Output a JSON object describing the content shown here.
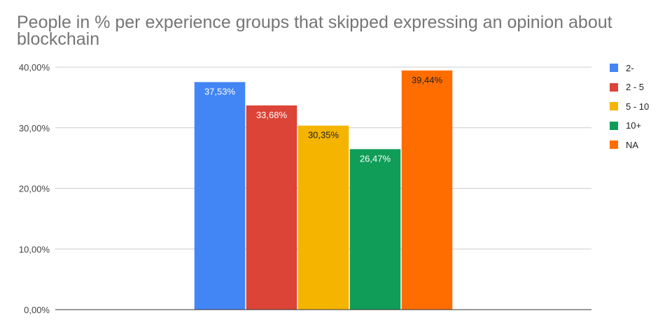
{
  "chart_data": {
    "type": "bar",
    "title": "People in % per experience groups that skipped expressing an opinion about blockchain",
    "xlabel": "",
    "ylabel": "",
    "ylim": [
      0,
      40
    ],
    "yticks": [
      "0,00%",
      "10,00%",
      "20,00%",
      "30,00%",
      "40,00%"
    ],
    "grid": true,
    "legend_position": "right",
    "categories": [
      ""
    ],
    "series": [
      {
        "name": "2-",
        "value": 37.53,
        "label": "37,53%",
        "color": "#4285f4",
        "label_color": "#ffffff"
      },
      {
        "name": "2 - 5",
        "value": 33.68,
        "label": "33,68%",
        "color": "#db4437",
        "label_color": "#ffffff"
      },
      {
        "name": "5 - 10",
        "value": 30.35,
        "label": "30,35%",
        "color": "#f4b400",
        "label_color": "#222222"
      },
      {
        "name": "10+",
        "value": 26.47,
        "label": "26,47%",
        "color": "#0f9d58",
        "label_color": "#ffffff"
      },
      {
        "name": "NA",
        "value": 39.44,
        "label": "39,44%",
        "color": "#ff6d00",
        "label_color": "#222222"
      }
    ]
  }
}
